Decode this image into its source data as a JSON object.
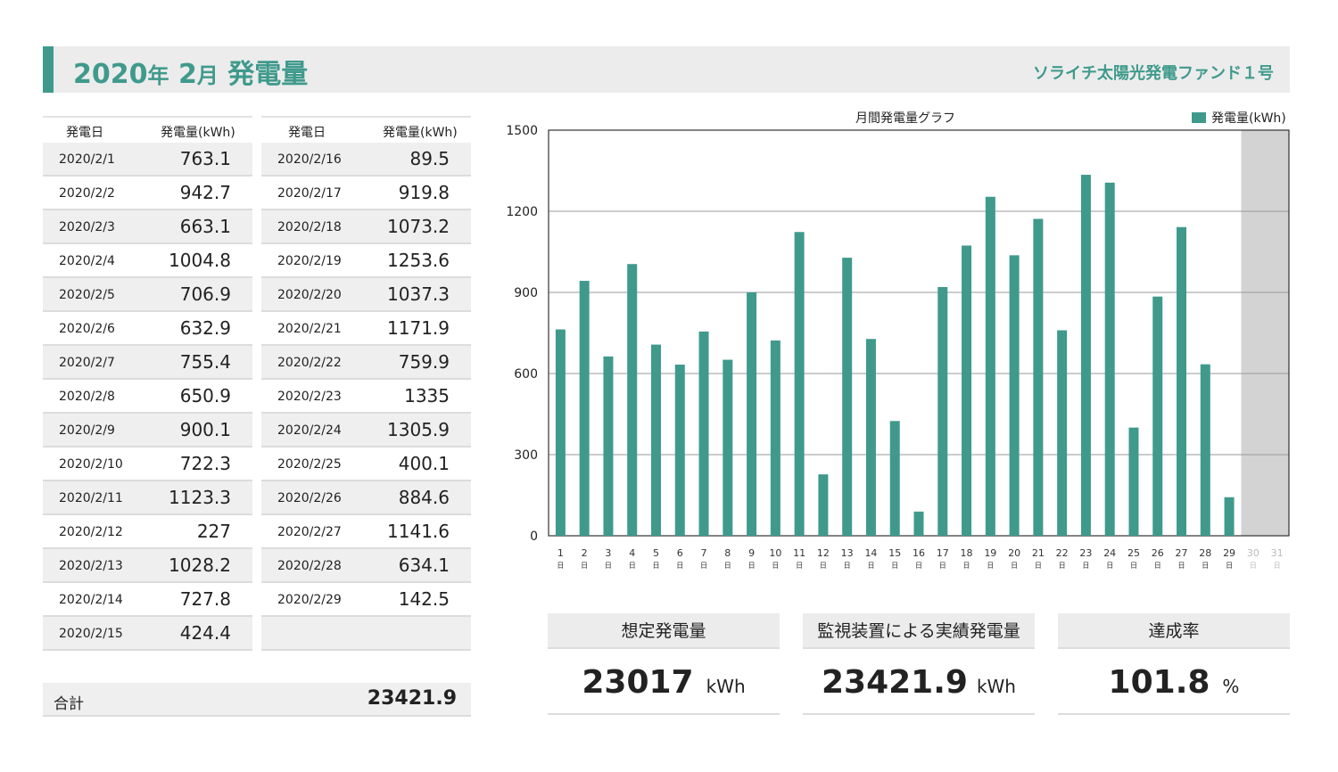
{
  "header": {
    "year": "2020",
    "year_suffix": "年",
    "month": "2",
    "month_suffix": "月",
    "title_main": "発電量",
    "fund_name": "ソライチ太陽光発電ファンド１号"
  },
  "table": {
    "col_date": "発電日",
    "col_value": "発電量(kWh)",
    "left_rows": [
      {
        "date": "2020/2/1",
        "value": "763.1"
      },
      {
        "date": "2020/2/2",
        "value": "942.7"
      },
      {
        "date": "2020/2/3",
        "value": "663.1"
      },
      {
        "date": "2020/2/4",
        "value": "1004.8"
      },
      {
        "date": "2020/2/5",
        "value": "706.9"
      },
      {
        "date": "2020/2/6",
        "value": "632.9"
      },
      {
        "date": "2020/2/7",
        "value": "755.4"
      },
      {
        "date": "2020/2/8",
        "value": "650.9"
      },
      {
        "date": "2020/2/9",
        "value": "900.1"
      },
      {
        "date": "2020/2/10",
        "value": "722.3"
      },
      {
        "date": "2020/2/11",
        "value": "1123.3"
      },
      {
        "date": "2020/2/12",
        "value": "227"
      },
      {
        "date": "2020/2/13",
        "value": "1028.2"
      },
      {
        "date": "2020/2/14",
        "value": "727.8"
      },
      {
        "date": "2020/2/15",
        "value": "424.4"
      }
    ],
    "right_rows": [
      {
        "date": "2020/2/16",
        "value": "89.5"
      },
      {
        "date": "2020/2/17",
        "value": "919.8"
      },
      {
        "date": "2020/2/18",
        "value": "1073.2"
      },
      {
        "date": "2020/2/19",
        "value": "1253.6"
      },
      {
        "date": "2020/2/20",
        "value": "1037.3"
      },
      {
        "date": "2020/2/21",
        "value": "1171.9"
      },
      {
        "date": "2020/2/22",
        "value": "759.9"
      },
      {
        "date": "2020/2/23",
        "value": "1335"
      },
      {
        "date": "2020/2/24",
        "value": "1305.9"
      },
      {
        "date": "2020/2/25",
        "value": "400.1"
      },
      {
        "date": "2020/2/26",
        "value": "884.6"
      },
      {
        "date": "2020/2/27",
        "value": "1141.6"
      },
      {
        "date": "2020/2/28",
        "value": "634.1"
      },
      {
        "date": "2020/2/29",
        "value": "142.5"
      },
      {
        "date": "",
        "value": ""
      }
    ],
    "total_label": "合計",
    "total_value": "23421.9"
  },
  "kpis": [
    {
      "label": "想定発電量",
      "value": "23017",
      "unit": "kWh"
    },
    {
      "label": "監視装置による実績発電量",
      "value": "23421.9",
      "unit": "kWh"
    },
    {
      "label": "達成率",
      "value": "101.8",
      "unit": "%"
    }
  ],
  "colors": {
    "accent": "#3f9a8c",
    "bar": "#3f9a8c",
    "missing_day_fill": "#d3d3d3"
  },
  "chart_data": {
    "type": "bar",
    "title": "月間発電量グラフ",
    "legend": {
      "label": "発電量(kWh)",
      "position": "top-right"
    },
    "ylim": [
      0,
      1500
    ],
    "yticks": [
      0,
      300,
      600,
      900,
      1200,
      1500
    ],
    "grid": true,
    "categories": [
      "1",
      "2",
      "3",
      "4",
      "5",
      "6",
      "7",
      "8",
      "9",
      "10",
      "11",
      "12",
      "13",
      "14",
      "15",
      "16",
      "17",
      "18",
      "19",
      "20",
      "21",
      "22",
      "23",
      "24",
      "25",
      "26",
      "27",
      "28",
      "29",
      "30",
      "31"
    ],
    "category_suffix": "日",
    "inactive_categories": [
      "30",
      "31"
    ],
    "series": [
      {
        "name": "発電量(kWh)",
        "values": [
          763.1,
          942.7,
          663.1,
          1004.8,
          706.9,
          632.9,
          755.4,
          650.9,
          900.1,
          722.3,
          1123.3,
          227,
          1028.2,
          727.8,
          424.4,
          89.5,
          919.8,
          1073.2,
          1253.6,
          1037.3,
          1171.9,
          759.9,
          1335,
          1305.9,
          400.1,
          884.6,
          1141.6,
          634.1,
          142.5,
          null,
          null
        ]
      }
    ]
  }
}
